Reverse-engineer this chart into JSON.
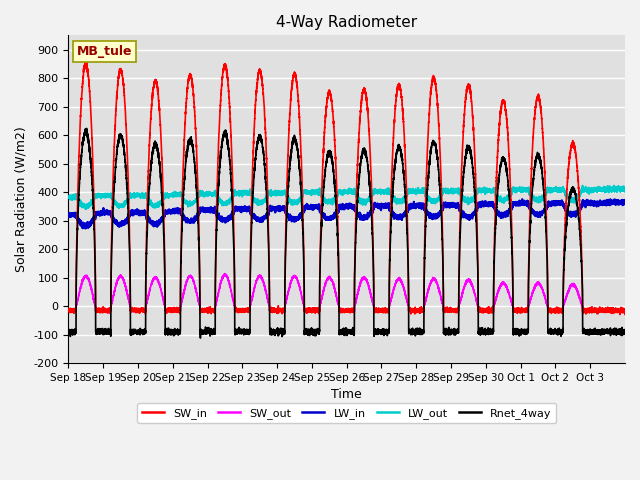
{
  "title": "4-Way Radiometer",
  "xlabel": "Time",
  "ylabel": "Solar Radiation (W/m2)",
  "ylim": [
    -200,
    950
  ],
  "yticks": [
    -200,
    -100,
    0,
    100,
    200,
    300,
    400,
    500,
    600,
    700,
    800,
    900
  ],
  "x_tick_labels": [
    "Sep 18",
    "Sep 19",
    "Sep 20",
    "Sep 21",
    "Sep 22",
    "Sep 23",
    "Sep 24",
    "Sep 25",
    "Sep 26",
    "Sep 27",
    "Sep 28",
    "Sep 29",
    "Sep 30",
    "Oct 1",
    "Oct 2",
    "Oct 3"
  ],
  "station_label": "MB_tule",
  "station_label_color": "#990000",
  "station_box_facecolor": "#ffffcc",
  "station_box_edgecolor": "#999900",
  "colors": {
    "SW_in": "#ff0000",
    "SW_out": "#ff00ff",
    "LW_in": "#0000cc",
    "LW_out": "#00cccc",
    "Rnet_4way": "#000000"
  },
  "background_color": "#e0e0e0",
  "grid_color": "#ffffff",
  "fig_facecolor": "#f2f2f2",
  "n_days": 16,
  "sw_in_peaks": [
    850,
    830,
    790,
    810,
    845,
    825,
    815,
    750,
    760,
    775,
    800,
    775,
    720,
    735,
    570,
    0
  ],
  "sw_out_peaks": [
    105,
    105,
    100,
    105,
    110,
    105,
    105,
    100,
    100,
    95,
    95,
    90,
    80,
    80,
    75,
    0
  ],
  "lw_in_base": 335,
  "lw_out_base": 405,
  "rnet_night": -90
}
